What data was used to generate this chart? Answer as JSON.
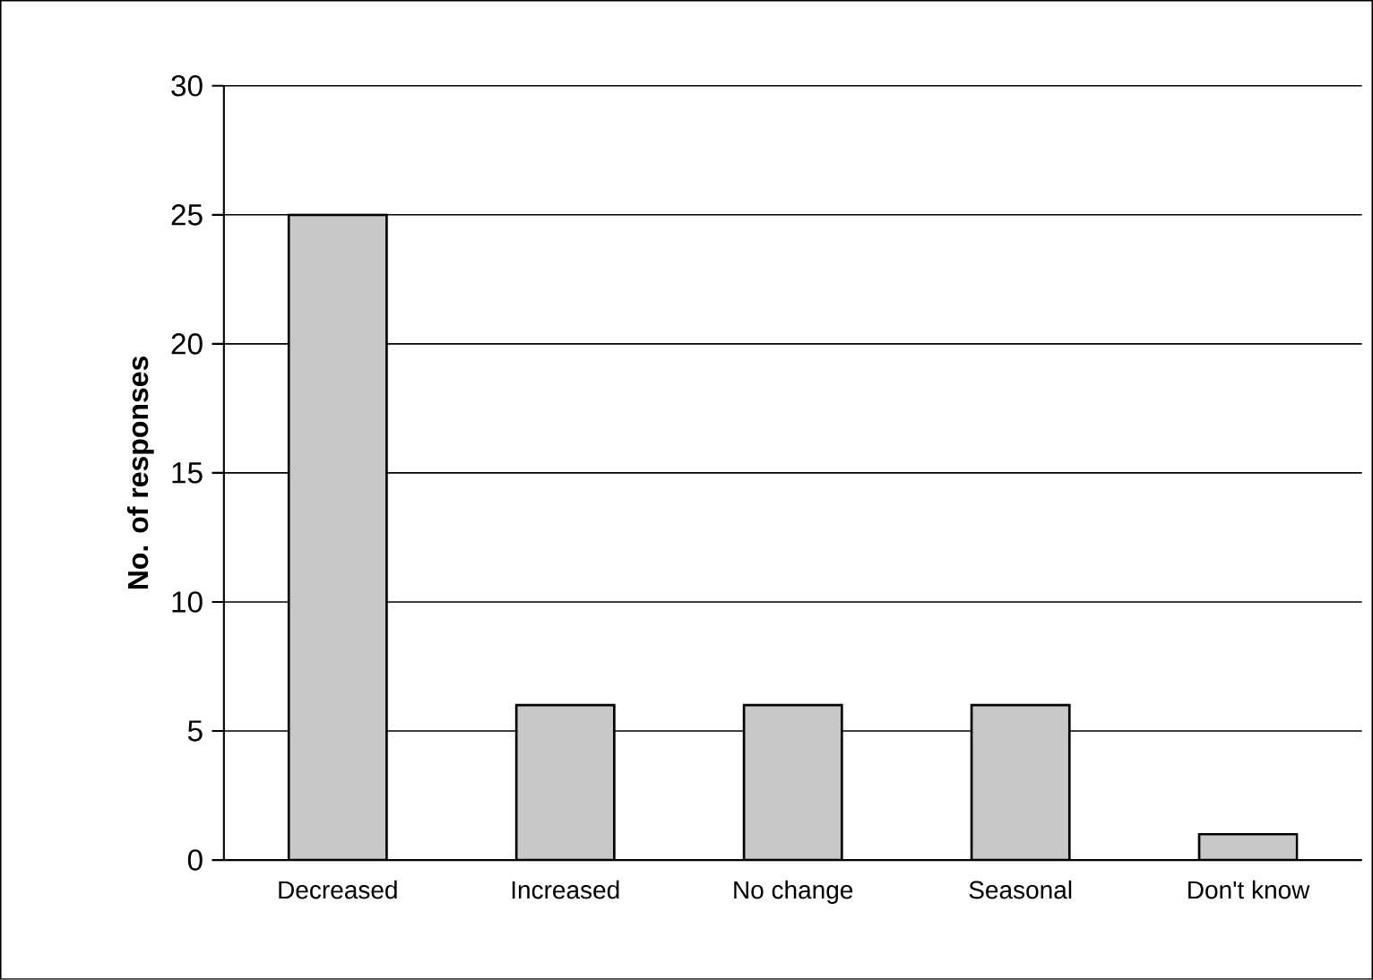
{
  "chart_data": {
    "type": "bar",
    "ylabel": "No. of responses",
    "categories": [
      "Decreased",
      "Increased",
      "No change",
      "Seasonal",
      "Don't know"
    ],
    "values": [
      25,
      6,
      6,
      6,
      1
    ],
    "color": "#c8c8c8",
    "ylim": [
      0,
      30
    ],
    "yticks": [
      0,
      5,
      10,
      15,
      20,
      25,
      30
    ],
    "grid": "y"
  }
}
